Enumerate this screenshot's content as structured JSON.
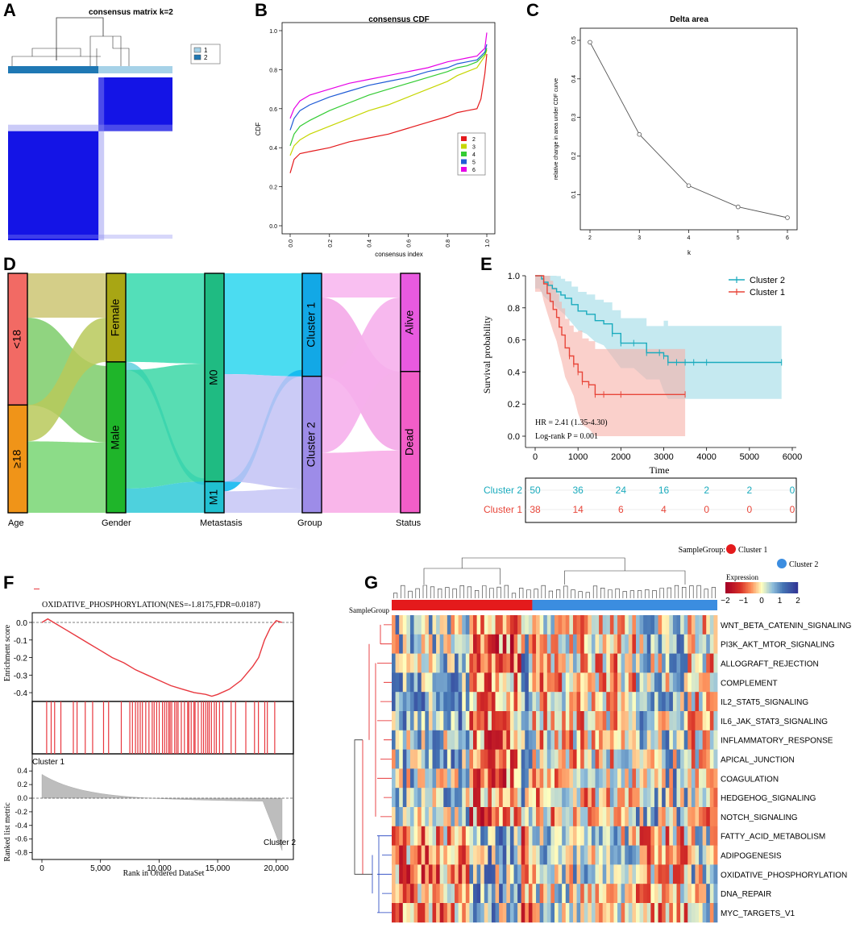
{
  "panel_labels": [
    "A",
    "B",
    "C",
    "D",
    "E",
    "F",
    "G"
  ],
  "colors": {
    "cluster1_light": "#a6d2e8",
    "cluster2_dark": "#1f78b4",
    "consensus_blue": "#1414e6",
    "k2": "#e41a1c",
    "k3": "#c6d600",
    "k4": "#33cc33",
    "k5": "#1f5bd6",
    "k6": "#e600e6",
    "surv_c2": "#1aabbd",
    "surv_c1": "#e8463a",
    "gsea_red": "#e8383f",
    "group_red": "#e41a1c",
    "group_blue": "#3b8de0"
  },
  "chart_data": [
    {
      "panel": "A",
      "type": "heatmap",
      "title": "consensus matrix k=2",
      "legend": [
        "1",
        "2"
      ],
      "clusters": [
        {
          "name": "2",
          "fraction": 0.55
        },
        {
          "name": "1",
          "fraction": 0.45
        }
      ]
    },
    {
      "panel": "B",
      "type": "line",
      "title": "consensus CDF",
      "xlabel": "consensus index",
      "ylabel": "CDF",
      "xlim": [
        0,
        1
      ],
      "ylim": [
        0,
        1
      ],
      "x_ticks": [
        "0.0",
        "0.2",
        "0.4",
        "0.6",
        "0.8",
        "1.0"
      ],
      "y_ticks": [
        "0.0",
        "0.2",
        "0.4",
        "0.6",
        "0.8",
        "1.0"
      ],
      "legend": [
        "2",
        "3",
        "4",
        "5",
        "6"
      ],
      "x": [
        0,
        0.02,
        0.05,
        0.1,
        0.2,
        0.3,
        0.4,
        0.5,
        0.6,
        0.7,
        0.8,
        0.85,
        0.9,
        0.95,
        0.97,
        0.99,
        1.0
      ],
      "series": [
        {
          "name": "2",
          "values": [
            0.27,
            0.34,
            0.37,
            0.38,
            0.4,
            0.43,
            0.45,
            0.47,
            0.5,
            0.53,
            0.56,
            0.58,
            0.59,
            0.6,
            0.65,
            0.78,
            0.88
          ]
        },
        {
          "name": "3",
          "values": [
            0.36,
            0.41,
            0.44,
            0.47,
            0.51,
            0.55,
            0.59,
            0.62,
            0.66,
            0.7,
            0.74,
            0.77,
            0.79,
            0.81,
            0.84,
            0.87,
            0.9
          ]
        },
        {
          "name": "4",
          "values": [
            0.41,
            0.47,
            0.51,
            0.54,
            0.59,
            0.63,
            0.67,
            0.7,
            0.73,
            0.76,
            0.79,
            0.81,
            0.82,
            0.84,
            0.86,
            0.88,
            0.91
          ]
        },
        {
          "name": "5",
          "values": [
            0.49,
            0.55,
            0.59,
            0.62,
            0.66,
            0.69,
            0.72,
            0.74,
            0.76,
            0.79,
            0.81,
            0.83,
            0.84,
            0.85,
            0.87,
            0.89,
            0.93
          ]
        },
        {
          "name": "6",
          "values": [
            0.55,
            0.6,
            0.64,
            0.67,
            0.7,
            0.73,
            0.75,
            0.77,
            0.79,
            0.81,
            0.84,
            0.85,
            0.86,
            0.87,
            0.89,
            0.91,
            0.99
          ]
        }
      ]
    },
    {
      "panel": "C",
      "type": "line",
      "title": "Delta area",
      "xlabel": "k",
      "ylabel": "relative change in area under CDF curve",
      "x": [
        2,
        3,
        4,
        5,
        6
      ],
      "values": [
        0.495,
        0.256,
        0.123,
        0.068,
        0.04
      ],
      "xlim": [
        2,
        6
      ],
      "ylim": [
        0.04,
        0.5
      ],
      "x_ticks": [
        "2",
        "3",
        "4",
        "5",
        "6"
      ],
      "y_ticks": [
        "0.1",
        "0.2",
        "0.3",
        "0.4",
        "0.5"
      ]
    },
    {
      "panel": "D",
      "type": "sankey",
      "axes": [
        "Age",
        "Gender",
        "Metastasis",
        "Group",
        "Status"
      ],
      "nodes": [
        {
          "axis": "Age",
          "label": "<18",
          "value": 55
        },
        {
          "axis": "Age",
          "label": "≥18",
          "value": 45
        },
        {
          "axis": "Gender",
          "label": "Female",
          "value": 37
        },
        {
          "axis": "Gender",
          "label": "Male",
          "value": 63
        },
        {
          "axis": "Metastasis",
          "label": "M0",
          "value": 87
        },
        {
          "axis": "Metastasis",
          "label": "M1",
          "value": 13
        },
        {
          "axis": "Group",
          "label": "Cluster 1",
          "value": 43
        },
        {
          "axis": "Group",
          "label": "Cluster 2",
          "value": 57
        },
        {
          "axis": "Status",
          "label": "Alive",
          "value": 41
        },
        {
          "axis": "Status",
          "label": "Dead",
          "value": 59
        }
      ]
    },
    {
      "panel": "E",
      "type": "line",
      "subtype": "kaplan-meier",
      "xlabel": "Time",
      "ylabel": "Survival probability",
      "xlim": [
        0,
        6000
      ],
      "ylim": [
        0,
        1
      ],
      "x_ticks": [
        "0",
        "1000",
        "2000",
        "3000",
        "4000",
        "5000",
        "6000"
      ],
      "y_ticks": [
        "0.0",
        "0.2",
        "0.4",
        "0.6",
        "0.8",
        "1.0"
      ],
      "legend": [
        "Cluster 2",
        "Cluster 1"
      ],
      "series": [
        {
          "name": "Cluster 2",
          "x": [
            0,
            100,
            150,
            200,
            300,
            400,
            500,
            600,
            700,
            850,
            1000,
            1200,
            1400,
            1600,
            1800,
            2000,
            2300,
            2600,
            2900,
            3000,
            3100,
            3300,
            3500,
            3700,
            4000,
            5750
          ],
          "values": [
            1.0,
            1.0,
            0.98,
            0.96,
            0.94,
            0.92,
            0.9,
            0.88,
            0.86,
            0.82,
            0.78,
            0.76,
            0.72,
            0.7,
            0.64,
            0.58,
            0.58,
            0.52,
            0.52,
            0.5,
            0.46,
            0.46,
            0.46,
            0.46,
            0.46,
            0.46
          ]
        },
        {
          "name": "Cluster 1",
          "x": [
            0,
            150,
            200,
            280,
            350,
            420,
            500,
            560,
            620,
            700,
            800,
            900,
            1000,
            1100,
            1250,
            1400,
            1600,
            2000,
            3500
          ],
          "values": [
            1.0,
            1.0,
            0.95,
            0.89,
            0.84,
            0.79,
            0.74,
            0.68,
            0.63,
            0.55,
            0.5,
            0.45,
            0.4,
            0.34,
            0.32,
            0.26,
            0.26,
            0.26,
            0.26
          ]
        }
      ],
      "hr_text": "HR = 2.41 (1.35-4.30)",
      "p_text": "Log-rank P = 0.001",
      "risk_table": {
        "time_points": [
          0,
          1000,
          2000,
          3000,
          4000,
          5000,
          6000
        ],
        "rows": [
          {
            "label": "Cluster  2",
            "values": [
              "50",
              "36",
              "24",
              "16",
              "2",
              "2",
              "0"
            ]
          },
          {
            "label": "Cluster  1",
            "values": [
              "38",
              "14",
              "6",
              "4",
              "0",
              "0",
              "0"
            ]
          }
        ]
      }
    },
    {
      "panel": "F",
      "type": "line",
      "subtype": "gsea",
      "legend": "OXIDATIVE_PHOSPHORYLATION(NES=-1.8175,FDR=0.0187)",
      "ylabel_top": "Enrichment score",
      "ylabel_bottom": "Ranked list metric",
      "xlabel": "Rank in Ordered DataSet",
      "x_ticks": [
        "0",
        "5,000",
        "10,000",
        "15,000",
        "20,000"
      ],
      "es_ticks": [
        "0.0",
        "-0.1",
        "-0.2",
        "-0.3",
        "-0.4"
      ],
      "metric_ticks": [
        "0.4",
        "0.2",
        "0.0",
        "-0.2",
        "-0.4",
        "-0.6",
        "-0.8"
      ],
      "x": [
        0,
        500,
        1000,
        2000,
        3000,
        4000,
        5000,
        6000,
        7000,
        8000,
        9000,
        10000,
        11000,
        12000,
        13000,
        14000,
        14500,
        15000,
        16000,
        17000,
        18000,
        18500,
        19000,
        19500,
        20000,
        20500
      ],
      "values": [
        0.0,
        0.02,
        0.0,
        -0.04,
        -0.08,
        -0.12,
        -0.16,
        -0.2,
        -0.23,
        -0.27,
        -0.3,
        -0.33,
        -0.36,
        -0.38,
        -0.4,
        -0.41,
        -0.42,
        -0.41,
        -0.38,
        -0.33,
        -0.25,
        -0.2,
        -0.1,
        -0.03,
        0.01,
        0.0
      ],
      "cluster_labels": [
        "Cluster 1",
        "Cluster 2"
      ]
    },
    {
      "panel": "G",
      "type": "heatmap",
      "legend_title": "SampleGroup:",
      "groups": [
        "Cluster 1",
        "Cluster 2"
      ],
      "group_row_label": "SampleGroup",
      "expression_title": "Expression",
      "scale_ticks": [
        "−2",
        "−1",
        "0",
        "1",
        "2"
      ],
      "rows": [
        "WNT_BETA_CATENIN_SIGNALING",
        "PI3K_AKT_MTOR_SIGNALING",
        "ALLOGRAFT_REJECTION",
        "COMPLEMENT",
        "IL2_STAT5_SIGNALING",
        "IL6_JAK_STAT3_SIGNALING",
        "INFLAMMATORY_RESPONSE",
        "APICAL_JUNCTION",
        "COAGULATION",
        "HEDGEHOG_SIGNALING",
        "NOTCH_SIGNALING",
        "FATTY_ACID_METABOLISM",
        "ADIPOGENESIS",
        "OXIDATIVE_PHOSPHORYLATION",
        "DNA_REPAIR",
        "MYC_TARGETS_V1"
      ],
      "n_columns": 88,
      "n_cluster1": 38
    }
  ]
}
